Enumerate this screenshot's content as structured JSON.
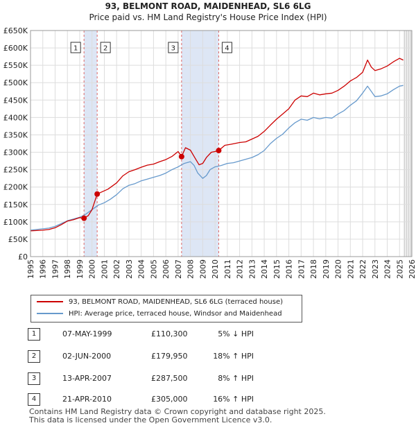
{
  "title": "93, BELMONT ROAD, MAIDENHEAD, SL6 6LG",
  "subtitle": "Price paid vs. HM Land Registry's House Price Index (HPI)",
  "colors": {
    "property": "#cc0000",
    "hpi": "#6699cc",
    "band": "#dde6f5",
    "vline": "#dd6666"
  },
  "chart_data": {
    "type": "line",
    "title": "93, BELMONT ROAD, MAIDENHEAD, SL6 6LG",
    "subtitle": "Price paid vs. HM Land Registry's House Price Index (HPI)",
    "xlim": [
      1995,
      2026
    ],
    "ylim": [
      0,
      650000
    ],
    "x_ticks": [
      "1995",
      "1996",
      "1997",
      "1998",
      "1999",
      "2000",
      "2001",
      "2002",
      "2003",
      "2004",
      "2005",
      "2006",
      "2007",
      "2008",
      "2009",
      "2010",
      "2011",
      "2012",
      "2013",
      "2014",
      "2015",
      "2016",
      "2017",
      "2018",
      "2019",
      "2020",
      "2021",
      "2022",
      "2023",
      "2024",
      "2025",
      "2026"
    ],
    "y_ticks": [
      {
        "value": 0,
        "label": "£0"
      },
      {
        "value": 50000,
        "label": "£50K"
      },
      {
        "value": 100000,
        "label": "£100K"
      },
      {
        "value": 150000,
        "label": "£150K"
      },
      {
        "value": 200000,
        "label": "£200K"
      },
      {
        "value": 250000,
        "label": "£250K"
      },
      {
        "value": 300000,
        "label": "£300K"
      },
      {
        "value": 350000,
        "label": "£350K"
      },
      {
        "value": 400000,
        "label": "£400K"
      },
      {
        "value": 450000,
        "label": "£450K"
      },
      {
        "value": 500000,
        "label": "£500K"
      },
      {
        "value": 550000,
        "label": "£550K"
      },
      {
        "value": 600000,
        "label": "£600K"
      },
      {
        "value": 650000,
        "label": "£650K"
      }
    ],
    "series": [
      {
        "name": "93, BELMONT ROAD, MAIDENHEAD, SL6 6LG (terraced house)",
        "color": "#cc0000",
        "x": [
          1995.0,
          1995.5,
          1996.0,
          1996.5,
          1997.0,
          1997.5,
          1998.0,
          1998.5,
          1999.0,
          1999.35,
          1999.7,
          2000.0,
          2000.42,
          2000.8,
          2001.3,
          2002.0,
          2002.5,
          2003.0,
          2003.5,
          2004.0,
          2004.5,
          2005.0,
          2005.5,
          2006.0,
          2006.5,
          2007.0,
          2007.28,
          2007.6,
          2008.0,
          2008.4,
          2008.7,
          2009.0,
          2009.3,
          2009.7,
          2010.0,
          2010.3,
          2010.8,
          2011.3,
          2012.0,
          2012.5,
          2013.0,
          2013.5,
          2014.0,
          2014.5,
          2015.0,
          2015.5,
          2016.0,
          2016.5,
          2017.0,
          2017.5,
          2018.0,
          2018.5,
          2019.0,
          2019.5,
          2020.0,
          2020.5,
          2021.0,
          2021.5,
          2022.0,
          2022.4,
          2022.7,
          2023.0,
          2023.5,
          2024.0,
          2024.5,
          2025.0,
          2025.3
        ],
        "values": [
          74000,
          75000,
          76000,
          78000,
          83000,
          92000,
          102000,
          106000,
          112000,
          110300,
          118000,
          135000,
          179950,
          186000,
          194000,
          212000,
          232000,
          244000,
          250000,
          257000,
          263000,
          266000,
          273000,
          279000,
          288000,
          302000,
          287500,
          313000,
          306000,
          282000,
          264000,
          268000,
          285000,
          300000,
          302000,
          305000,
          320000,
          323000,
          328000,
          330000,
          338000,
          346000,
          360000,
          378000,
          395000,
          410000,
          425000,
          450000,
          462000,
          460000,
          470000,
          465000,
          468000,
          470000,
          478000,
          490000,
          505000,
          515000,
          530000,
          565000,
          545000,
          535000,
          540000,
          548000,
          560000,
          570000,
          565000
        ]
      },
      {
        "name": "HPI: Average price, terraced house, Windsor and Maidenhead",
        "color": "#6699cc",
        "x": [
          1995.0,
          1995.5,
          1996.0,
          1996.5,
          1997.0,
          1997.5,
          1998.0,
          1998.5,
          1999.0,
          1999.5,
          2000.0,
          2000.5,
          2001.0,
          2001.5,
          2002.0,
          2002.5,
          2003.0,
          2003.5,
          2004.0,
          2004.5,
          2005.0,
          2005.5,
          2006.0,
          2006.5,
          2007.0,
          2007.5,
          2008.0,
          2008.3,
          2008.6,
          2009.0,
          2009.3,
          2009.6,
          2010.0,
          2010.5,
          2011.0,
          2011.5,
          2012.0,
          2012.5,
          2013.0,
          2013.5,
          2014.0,
          2014.5,
          2015.0,
          2015.5,
          2016.0,
          2016.5,
          2017.0,
          2017.5,
          2018.0,
          2018.5,
          2019.0,
          2019.5,
          2020.0,
          2020.5,
          2021.0,
          2021.5,
          2022.0,
          2022.4,
          2022.7,
          2023.0,
          2023.5,
          2024.0,
          2024.5,
          2025.0,
          2025.3
        ],
        "values": [
          76000,
          78000,
          80000,
          82000,
          87000,
          95000,
          103000,
          108000,
          113000,
          122000,
          135000,
          148000,
          155000,
          165000,
          178000,
          195000,
          205000,
          210000,
          218000,
          223000,
          228000,
          233000,
          240000,
          250000,
          258000,
          268000,
          273000,
          262000,
          240000,
          225000,
          233000,
          250000,
          258000,
          262000,
          268000,
          270000,
          275000,
          280000,
          285000,
          293000,
          305000,
          325000,
          340000,
          352000,
          370000,
          385000,
          395000,
          392000,
          400000,
          396000,
          400000,
          398000,
          410000,
          420000,
          435000,
          448000,
          470000,
          490000,
          475000,
          460000,
          462000,
          468000,
          480000,
          490000,
          492000
        ]
      }
    ],
    "sales": [
      {
        "n": "1",
        "date": "07-MAY-1999",
        "price": "£110,300",
        "hpi": "5% ↓ HPI",
        "x": 1999.35,
        "y": 110300
      },
      {
        "n": "2",
        "date": "02-JUN-2000",
        "price": "£179,950",
        "hpi": "18% ↑ HPI",
        "x": 2000.42,
        "y": 179950
      },
      {
        "n": "3",
        "date": "13-APR-2007",
        "price": "£287,500",
        "hpi": "8% ↑ HPI",
        "x": 2007.28,
        "y": 287500
      },
      {
        "n": "4",
        "date": "21-APR-2010",
        "price": "£305,000",
        "hpi": "16% ↑ HPI",
        "x": 2010.3,
        "y": 305000
      }
    ],
    "shaded_ranges": [
      [
        1999.35,
        2000.42
      ],
      [
        2007.28,
        2010.3
      ]
    ],
    "forecast_start": 2025.3
  },
  "legend": {
    "property_label": "93, BELMONT ROAD, MAIDENHEAD, SL6 6LG (terraced house)",
    "hpi_label": "HPI: Average price, terraced house, Windsor and Maidenhead"
  },
  "footer": {
    "line1": "Contains HM Land Registry data © Crown copyright and database right 2025.",
    "line2": "This data is licensed under the Open Government Licence v3.0."
  }
}
